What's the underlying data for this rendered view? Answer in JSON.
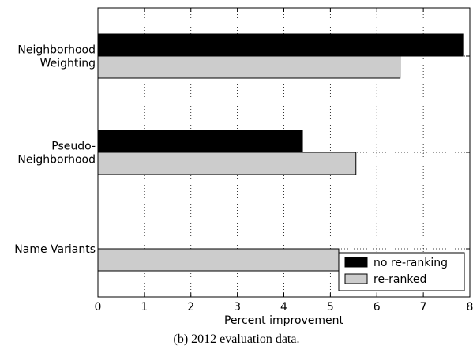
{
  "caption": "(b) 2012 evaluation data.",
  "colors": {
    "no_reranking": "#000000",
    "reranked": "#cccccc"
  },
  "chart_data": {
    "type": "bar",
    "orientation": "horizontal",
    "categories": [
      [
        "Neighborhood",
        "Weighting"
      ],
      [
        "Pseudo-",
        "Neighborhood"
      ],
      [
        "Name Variants"
      ]
    ],
    "series": [
      {
        "name": "no re-ranking",
        "values": [
          7.85,
          4.4,
          null
        ],
        "color": "#000000"
      },
      {
        "name": "re-ranked",
        "values": [
          6.5,
          5.55,
          5.18
        ],
        "color": "#cccccc"
      }
    ],
    "xlabel": "Percent improvement",
    "ylabel": "",
    "xlim": [
      0,
      8
    ],
    "xticks": [
      "0",
      "1",
      "2",
      "3",
      "4",
      "5",
      "6",
      "7",
      "8"
    ],
    "grid": true,
    "legend_position": "bottom-right"
  }
}
